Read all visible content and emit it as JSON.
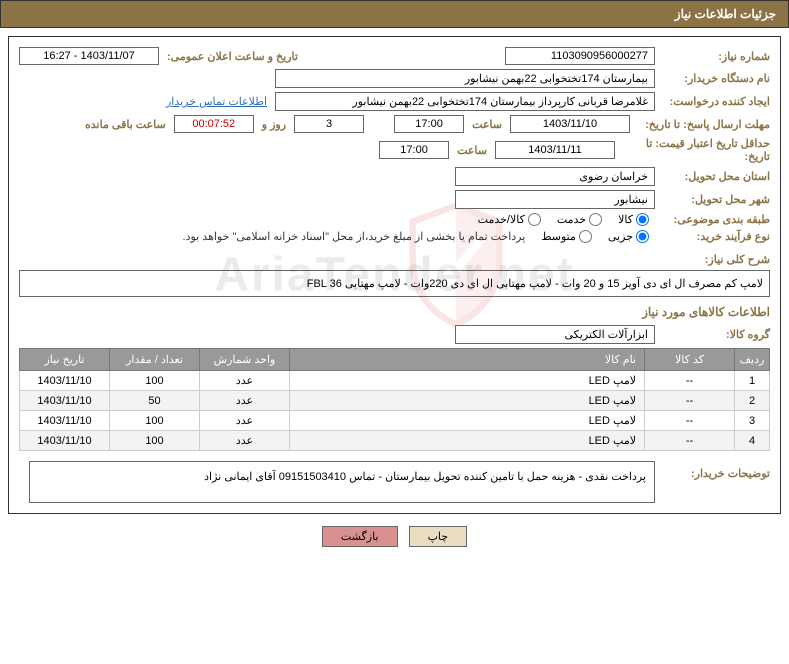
{
  "header": {
    "title": "جزئیات اطلاعات نیاز"
  },
  "labels": {
    "need_no": "شماره نیاز:",
    "announce_dt": "تاریخ و ساعت اعلان عمومی:",
    "buyer_org": "نام دستگاه خریدار:",
    "requester": "ایجاد کننده درخواست:",
    "contact_link": "اطلاعات تماس خریدار",
    "response_deadline": "مهلت ارسال پاسخ: تا تاریخ:",
    "hour": "ساعت",
    "days_and": "روز و",
    "remaining": "ساعت باقی مانده",
    "min_validity": "حداقل تاریخ اعتبار قیمت: تا تاریخ:",
    "delivery_province": "استان محل تحویل:",
    "delivery_city": "شهر محل تحویل:",
    "classification": "طبقه بندی موضوعی:",
    "process_type": "نوع فرآیند خرید:",
    "process_note": "پرداخت تمام یا بخشی از مبلغ خرید،از محل \"اسناد خزانه اسلامی\" خواهد بود.",
    "general_desc": "شرح کلی نیاز:",
    "items_section": "اطلاعات کالاهای مورد نیاز",
    "goods_group": "گروه کالا:",
    "buyer_notes": "توضیحات خریدار:"
  },
  "fields": {
    "need_no": "1103090956000277",
    "announce_dt": "1403/11/07 - 16:27",
    "buyer_org": "بیمارستان 174تختخوابی 22بهمن نیشابور",
    "requester": "غلامرضا قربانی کارپرداز بیمارستان 174تختخوابی 22بهمن نیشابور",
    "resp_date": "1403/11/10",
    "resp_time": "17:00",
    "days_left": "3",
    "countdown": "00:07:52",
    "valid_date": "1403/11/11",
    "valid_time": "17:00",
    "province": "خراسان رضوی",
    "city": "نیشابور",
    "general_desc": "لامپ کم مصرف ال ای دی آویز 15 و 20 وات - لامپ مهتابی ال ای دی 220وات - لامپ مهتابی  FBL 36",
    "goods_group": "ابزارآلات الکتریکی",
    "buyer_notes": "پرداخت نقدی - هزینه حمل با تامین کننده تحویل بیمارستان - تماس 09151503410 آقای ایمانی نژاد"
  },
  "radios": {
    "class_goods": "کالا",
    "class_service": "خدمت",
    "class_both": "کالا/خدمت",
    "proc_small": "جزیی",
    "proc_med": "متوسط"
  },
  "table": {
    "headers": {
      "idx": "ردیف",
      "code": "کد کالا",
      "name": "نام کالا",
      "unit": "واحد شمارش",
      "qty": "تعداد / مقدار",
      "date": "تاریخ نیاز"
    },
    "rows": [
      {
        "idx": "1",
        "code": "--",
        "name": "لامپ LED",
        "unit": "عدد",
        "qty": "100",
        "date": "1403/11/10"
      },
      {
        "idx": "2",
        "code": "--",
        "name": "لامپ LED",
        "unit": "عدد",
        "qty": "50",
        "date": "1403/11/10"
      },
      {
        "idx": "3",
        "code": "--",
        "name": "لامپ LED",
        "unit": "عدد",
        "qty": "100",
        "date": "1403/11/10"
      },
      {
        "idx": "4",
        "code": "--",
        "name": "لامپ LED",
        "unit": "عدد",
        "qty": "100",
        "date": "1403/11/10"
      }
    ]
  },
  "buttons": {
    "print": "چاپ",
    "back": "بازگشت"
  },
  "watermark": "AriaTender.net"
}
